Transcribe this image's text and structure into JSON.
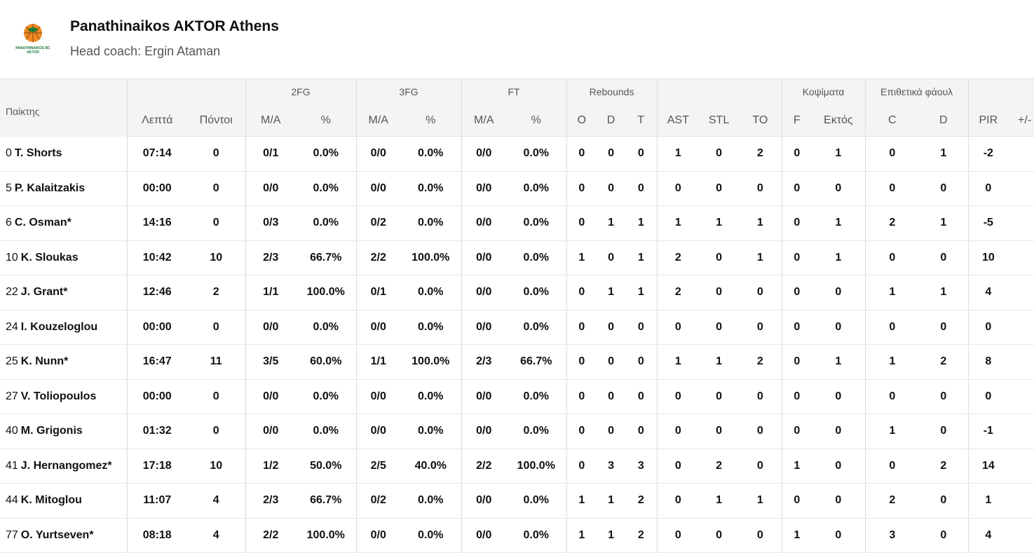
{
  "team": {
    "name": "Panathinaikos AKTOR Athens",
    "coach": "Head coach: Ergin Ataman",
    "logo_text_top": "PANATHINAIKOS BC",
    "logo_text_bottom": "AKTOR",
    "logo_colors": {
      "orange": "#f08a24",
      "green": "#1a7a3a"
    }
  },
  "header": {
    "groups": {
      "fg2": "2FG",
      "fg3": "3FG",
      "ft": "FT",
      "rebounds": "Rebounds",
      "blocks": "Κοψίματα",
      "fouls": "Επιθετικά φάουλ"
    },
    "cols": {
      "player": "Παίκτης",
      "minutes": "Λεπτά",
      "points": "Πόντοι",
      "fg2_ma": "M/A",
      "fg2_pct": "%",
      "fg3_ma": "M/A",
      "fg3_pct": "%",
      "ft_ma": "M/A",
      "ft_pct": "%",
      "reb_o": "O",
      "reb_d": "D",
      "reb_t": "T",
      "ast": "AST",
      "stl": "STL",
      "to": "TO",
      "blk_f": "F",
      "blk_ag": "Εκτός",
      "foul_c": "C",
      "foul_d": "D",
      "pir": "PIR",
      "pm": "+/-"
    }
  },
  "players": [
    {
      "num": "0",
      "name": "T. Shorts",
      "min": "07:14",
      "pts": "0",
      "fg2": "0/1",
      "fg2p": "0.0%",
      "fg3": "0/0",
      "fg3p": "0.0%",
      "ft": "0/0",
      "ftp": "0.0%",
      "o": "0",
      "d": "0",
      "t": "0",
      "ast": "1",
      "stl": "0",
      "to": "2",
      "bf": "0",
      "ba": "1",
      "fc": "0",
      "fd": "1",
      "pir": "-2",
      "pm": ""
    },
    {
      "num": "5",
      "name": "P. Kalaitzakis",
      "min": "00:00",
      "pts": "0",
      "fg2": "0/0",
      "fg2p": "0.0%",
      "fg3": "0/0",
      "fg3p": "0.0%",
      "ft": "0/0",
      "ftp": "0.0%",
      "o": "0",
      "d": "0",
      "t": "0",
      "ast": "0",
      "stl": "0",
      "to": "0",
      "bf": "0",
      "ba": "0",
      "fc": "0",
      "fd": "0",
      "pir": "0",
      "pm": ""
    },
    {
      "num": "6",
      "name": "C. Osman*",
      "min": "14:16",
      "pts": "0",
      "fg2": "0/3",
      "fg2p": "0.0%",
      "fg3": "0/2",
      "fg3p": "0.0%",
      "ft": "0/0",
      "ftp": "0.0%",
      "o": "0",
      "d": "1",
      "t": "1",
      "ast": "1",
      "stl": "1",
      "to": "1",
      "bf": "0",
      "ba": "1",
      "fc": "2",
      "fd": "1",
      "pir": "-5",
      "pm": ""
    },
    {
      "num": "10",
      "name": "K. Sloukas",
      "min": "10:42",
      "pts": "10",
      "fg2": "2/3",
      "fg2p": "66.7%",
      "fg3": "2/2",
      "fg3p": "100.0%",
      "ft": "0/0",
      "ftp": "0.0%",
      "o": "1",
      "d": "0",
      "t": "1",
      "ast": "2",
      "stl": "0",
      "to": "1",
      "bf": "0",
      "ba": "1",
      "fc": "0",
      "fd": "0",
      "pir": "10",
      "pm": ""
    },
    {
      "num": "22",
      "name": "J. Grant*",
      "min": "12:46",
      "pts": "2",
      "fg2": "1/1",
      "fg2p": "100.0%",
      "fg3": "0/1",
      "fg3p": "0.0%",
      "ft": "0/0",
      "ftp": "0.0%",
      "o": "0",
      "d": "1",
      "t": "1",
      "ast": "2",
      "stl": "0",
      "to": "0",
      "bf": "0",
      "ba": "0",
      "fc": "1",
      "fd": "1",
      "pir": "4",
      "pm": ""
    },
    {
      "num": "24",
      "name": "I. Kouzeloglou",
      "min": "00:00",
      "pts": "0",
      "fg2": "0/0",
      "fg2p": "0.0%",
      "fg3": "0/0",
      "fg3p": "0.0%",
      "ft": "0/0",
      "ftp": "0.0%",
      "o": "0",
      "d": "0",
      "t": "0",
      "ast": "0",
      "stl": "0",
      "to": "0",
      "bf": "0",
      "ba": "0",
      "fc": "0",
      "fd": "0",
      "pir": "0",
      "pm": ""
    },
    {
      "num": "25",
      "name": "K. Nunn*",
      "min": "16:47",
      "pts": "11",
      "fg2": "3/5",
      "fg2p": "60.0%",
      "fg3": "1/1",
      "fg3p": "100.0%",
      "ft": "2/3",
      "ftp": "66.7%",
      "o": "0",
      "d": "0",
      "t": "0",
      "ast": "1",
      "stl": "1",
      "to": "2",
      "bf": "0",
      "ba": "1",
      "fc": "1",
      "fd": "2",
      "pir": "8",
      "pm": ""
    },
    {
      "num": "27",
      "name": "V. Toliopoulos",
      "min": "00:00",
      "pts": "0",
      "fg2": "0/0",
      "fg2p": "0.0%",
      "fg3": "0/0",
      "fg3p": "0.0%",
      "ft": "0/0",
      "ftp": "0.0%",
      "o": "0",
      "d": "0",
      "t": "0",
      "ast": "0",
      "stl": "0",
      "to": "0",
      "bf": "0",
      "ba": "0",
      "fc": "0",
      "fd": "0",
      "pir": "0",
      "pm": ""
    },
    {
      "num": "40",
      "name": "M. Grigonis",
      "min": "01:32",
      "pts": "0",
      "fg2": "0/0",
      "fg2p": "0.0%",
      "fg3": "0/0",
      "fg3p": "0.0%",
      "ft": "0/0",
      "ftp": "0.0%",
      "o": "0",
      "d": "0",
      "t": "0",
      "ast": "0",
      "stl": "0",
      "to": "0",
      "bf": "0",
      "ba": "0",
      "fc": "1",
      "fd": "0",
      "pir": "-1",
      "pm": ""
    },
    {
      "num": "41",
      "name": "J. Hernangomez*",
      "min": "17:18",
      "pts": "10",
      "fg2": "1/2",
      "fg2p": "50.0%",
      "fg3": "2/5",
      "fg3p": "40.0%",
      "ft": "2/2",
      "ftp": "100.0%",
      "o": "0",
      "d": "3",
      "t": "3",
      "ast": "0",
      "stl": "2",
      "to": "0",
      "bf": "1",
      "ba": "0",
      "fc": "0",
      "fd": "2",
      "pir": "14",
      "pm": ""
    },
    {
      "num": "44",
      "name": "K. Mitoglou",
      "min": "11:07",
      "pts": "4",
      "fg2": "2/3",
      "fg2p": "66.7%",
      "fg3": "0/2",
      "fg3p": "0.0%",
      "ft": "0/0",
      "ftp": "0.0%",
      "o": "1",
      "d": "1",
      "t": "2",
      "ast": "0",
      "stl": "1",
      "to": "1",
      "bf": "0",
      "ba": "0",
      "fc": "2",
      "fd": "0",
      "pir": "1",
      "pm": ""
    },
    {
      "num": "77",
      "name": "O. Yurtseven*",
      "min": "08:18",
      "pts": "4",
      "fg2": "2/2",
      "fg2p": "100.0%",
      "fg3": "0/0",
      "fg3p": "0.0%",
      "ft": "0/0",
      "ftp": "0.0%",
      "o": "1",
      "d": "1",
      "t": "2",
      "ast": "0",
      "stl": "0",
      "to": "0",
      "bf": "1",
      "ba": "0",
      "fc": "3",
      "fd": "0",
      "pir": "4",
      "pm": ""
    }
  ]
}
